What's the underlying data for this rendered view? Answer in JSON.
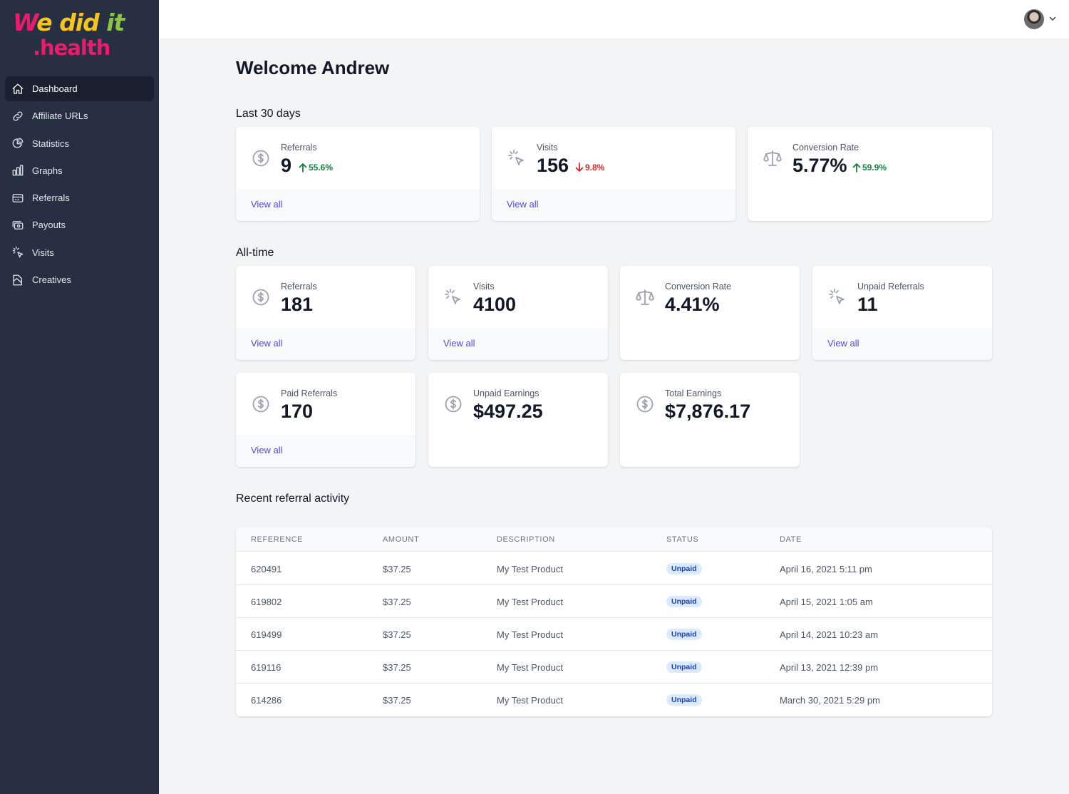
{
  "brand": {
    "logo_line1_w": "W",
    "logo_line1_e": "e",
    "logo_line1_did": "did",
    "logo_line1_it": "it",
    "logo_line2": ".health"
  },
  "sidebar": {
    "items": [
      {
        "label": "Dashboard",
        "icon": "home-icon",
        "active": true
      },
      {
        "label": "Affiliate URLs",
        "icon": "link-icon"
      },
      {
        "label": "Statistics",
        "icon": "pie-chart-icon"
      },
      {
        "label": "Graphs",
        "icon": "bar-chart-icon"
      },
      {
        "label": "Referrals",
        "icon": "credit-card-icon"
      },
      {
        "label": "Payouts",
        "icon": "cash-icon"
      },
      {
        "label": "Visits",
        "icon": "cursor-click-icon"
      },
      {
        "label": "Creatives",
        "icon": "document-icon"
      }
    ]
  },
  "header": {
    "avatar_icon": "user-avatar"
  },
  "main": {
    "welcome": "Welcome Andrew",
    "last30": {
      "title": "Last 30 days",
      "cards": [
        {
          "label": "Referrals",
          "value": "9",
          "delta": "55.6%",
          "direction": "up",
          "link": "View all",
          "icon": "currency-dollar-icon"
        },
        {
          "label": "Visits",
          "value": "156",
          "delta": "9.8%",
          "direction": "down",
          "link": "View all",
          "icon": "cursor-click-icon"
        },
        {
          "label": "Conversion Rate",
          "value": "5.77%",
          "delta": "59.9%",
          "direction": "up",
          "icon": "scale-icon"
        }
      ]
    },
    "alltime": {
      "title": "All-time",
      "cards": [
        {
          "label": "Referrals",
          "value": "181",
          "link": "View all",
          "icon": "currency-dollar-icon"
        },
        {
          "label": "Visits",
          "value": "4100",
          "link": "View all",
          "icon": "cursor-click-icon"
        },
        {
          "label": "Conversion Rate",
          "value": "4.41%",
          "icon": "scale-icon"
        },
        {
          "label": "Unpaid Referrals",
          "value": "11",
          "link": "View all",
          "icon": "cursor-click-icon"
        },
        {
          "label": "Paid Referrals",
          "value": "170",
          "link": "View all",
          "icon": "currency-dollar-icon"
        },
        {
          "label": "Unpaid Earnings",
          "value": "$497.25",
          "icon": "currency-dollar-icon"
        },
        {
          "label": "Total Earnings",
          "value": "$7,876.17",
          "icon": "currency-dollar-icon"
        }
      ]
    },
    "recent": {
      "title": "Recent referral activity",
      "columns": [
        "REFERENCE",
        "AMOUNT",
        "DESCRIPTION",
        "STATUS",
        "DATE"
      ],
      "rows": [
        {
          "reference": "620491",
          "amount": "$37.25",
          "description": "My Test Product",
          "status": "Unpaid",
          "date": "April 16, 2021 5:11 pm"
        },
        {
          "reference": "619802",
          "amount": "$37.25",
          "description": "My Test Product",
          "status": "Unpaid",
          "date": "April 15, 2021 1:05 am"
        },
        {
          "reference": "619499",
          "amount": "$37.25",
          "description": "My Test Product",
          "status": "Unpaid",
          "date": "April 14, 2021 10:23 am"
        },
        {
          "reference": "619116",
          "amount": "$37.25",
          "description": "My Test Product",
          "status": "Unpaid",
          "date": "April 13, 2021 12:39 pm"
        },
        {
          "reference": "614286",
          "amount": "$37.25",
          "description": "My Test Product",
          "status": "Unpaid",
          "date": "March 30, 2021 5:29 pm"
        }
      ]
    }
  }
}
